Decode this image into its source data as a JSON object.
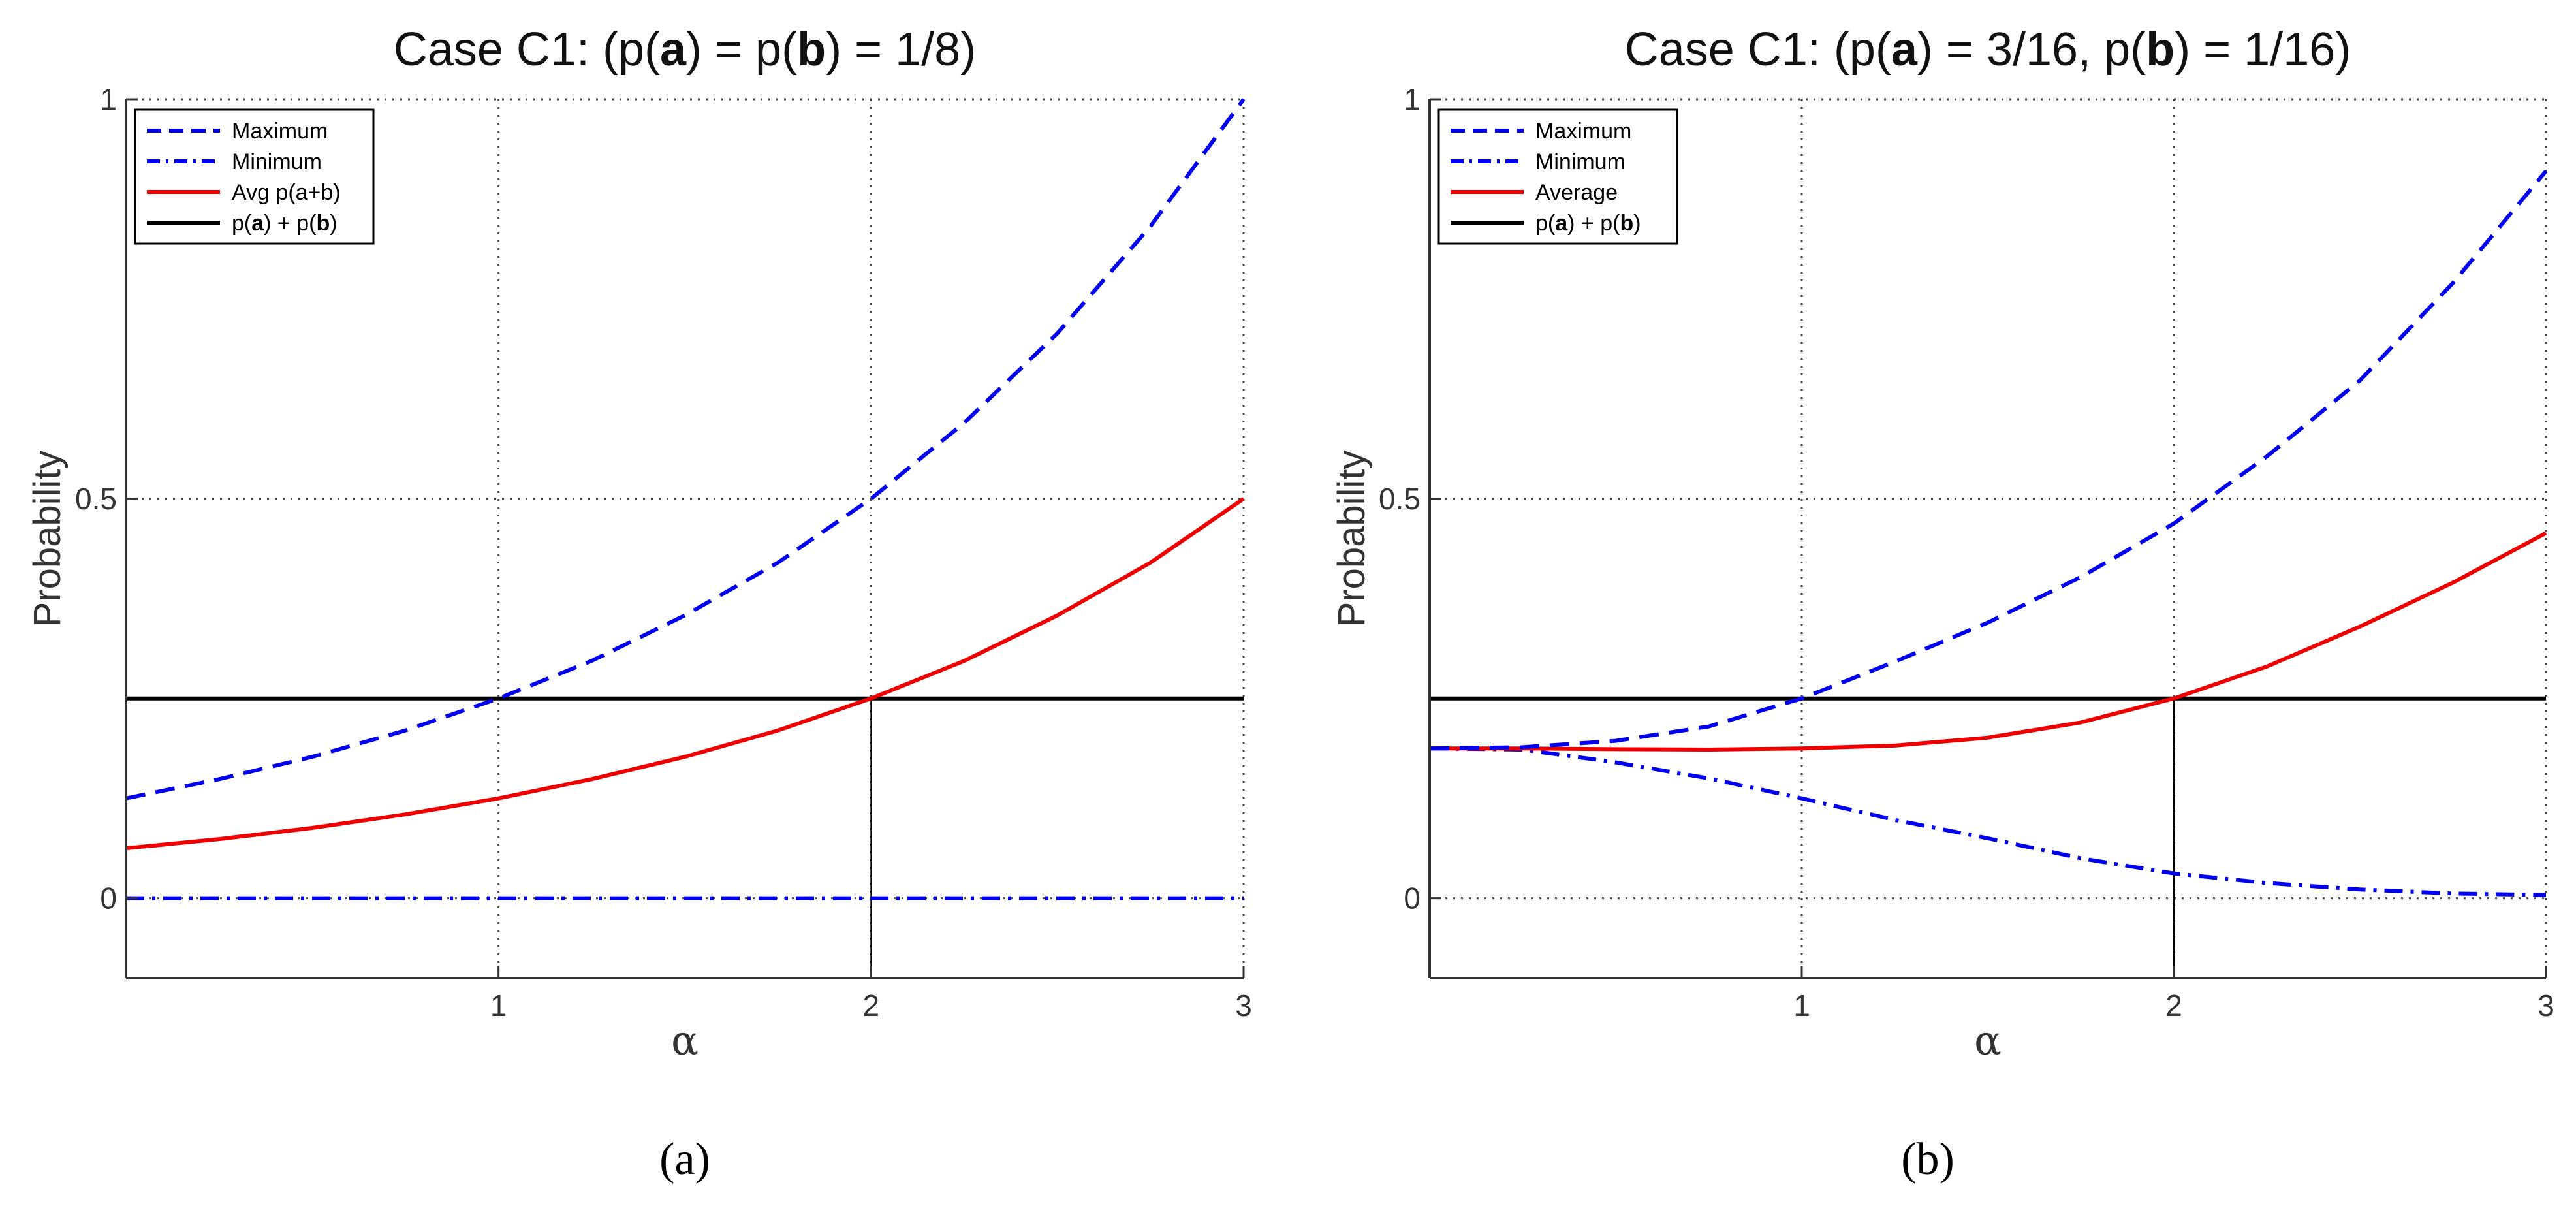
{
  "chart_data": [
    {
      "type": "line",
      "title": {
        "prefix": "Case C1: (p(",
        "a": "a",
        "mid": ") = p(",
        "b": "b",
        "suffix": ") = 1/8)"
      },
      "xlabel": "α",
      "ylabel": "Probability",
      "caption": "(a)",
      "xlim": [
        0,
        3
      ],
      "ylim": [
        -0.1,
        1
      ],
      "xticks": [
        1,
        2,
        3
      ],
      "yticks": [
        0,
        0.5,
        1
      ],
      "ytick_labels": [
        "0",
        "0.5",
        "1"
      ],
      "grid": true,
      "legend_position": "top-left",
      "x": [
        0,
        0.25,
        0.5,
        0.75,
        1,
        1.25,
        1.5,
        1.75,
        2,
        2.25,
        2.5,
        2.75,
        3
      ],
      "series": [
        {
          "name": "Maximum",
          "key": "max",
          "color": "#0000ee",
          "dash": "dashed",
          "values": [
            0.125,
            0.149,
            0.177,
            0.21,
            0.25,
            0.297,
            0.354,
            0.42,
            0.5,
            0.595,
            0.707,
            0.841,
            1.0
          ]
        },
        {
          "name": "Minimum",
          "key": "min",
          "color": "#0000ee",
          "dash": "dashdot",
          "values": [
            0,
            0,
            0,
            0,
            0,
            0,
            0,
            0,
            0,
            0,
            0,
            0,
            0
          ]
        },
        {
          "name": "Avg p(a+b)",
          "key": "avg",
          "color": "#ee0000",
          "dash": "solid",
          "values": [
            0.0625,
            0.074,
            0.088,
            0.105,
            0.125,
            0.149,
            0.177,
            0.21,
            0.25,
            0.297,
            0.354,
            0.42,
            0.5
          ]
        },
        {
          "name": "p(a) + p(b)",
          "key": "sum",
          "color": "#000000",
          "dash": "solid",
          "legend_parts": [
            "p(",
            "a",
            ") + p(",
            "b",
            ")"
          ],
          "values": [
            0.25,
            0.25,
            0.25,
            0.25,
            0.25,
            0.25,
            0.25,
            0.25,
            0.25,
            0.25,
            0.25,
            0.25,
            0.25
          ]
        }
      ],
      "drop_line": {
        "x": 2,
        "y": 0.25
      }
    },
    {
      "type": "line",
      "title": {
        "prefix": "Case C1: (p(",
        "a": "a",
        "mid": ") = 3/16, p(",
        "b": "b",
        "suffix": ") = 1/16)"
      },
      "xlabel": "α",
      "ylabel": "Probability",
      "caption": "(b)",
      "xlim": [
        0,
        3
      ],
      "ylim": [
        -0.1,
        1
      ],
      "xticks": [
        1,
        2,
        3
      ],
      "yticks": [
        0,
        0.5,
        1
      ],
      "ytick_labels": [
        "0",
        "0.5",
        "1"
      ],
      "grid": true,
      "legend_position": "top-left",
      "x": [
        0,
        0.25,
        0.5,
        0.75,
        1,
        1.25,
        1.5,
        1.75,
        2,
        2.25,
        2.5,
        2.75,
        3
      ],
      "series": [
        {
          "name": "Maximum",
          "key": "max",
          "color": "#0000ee",
          "dash": "dashed",
          "values": [
            0.1875,
            0.189,
            0.197,
            0.215,
            0.25,
            0.296,
            0.345,
            0.402,
            0.469,
            0.553,
            0.648,
            0.77,
            0.91
          ]
        },
        {
          "name": "Minimum",
          "key": "min",
          "color": "#0000ee",
          "dash": "dashdot",
          "values": [
            0.1875,
            0.186,
            0.17,
            0.15,
            0.125,
            0.098,
            0.075,
            0.05,
            0.031,
            0.019,
            0.011,
            0.006,
            0.004
          ]
        },
        {
          "name": "Average",
          "key": "avg",
          "color": "#ee0000",
          "dash": "solid",
          "values": [
            0.1875,
            0.1875,
            0.1865,
            0.186,
            0.1875,
            0.191,
            0.201,
            0.22,
            0.25,
            0.29,
            0.34,
            0.395,
            0.457
          ]
        },
        {
          "name": "p(a) + p(b)",
          "key": "sum",
          "color": "#000000",
          "dash": "solid",
          "legend_parts": [
            "p(",
            "a",
            ") + p(",
            "b",
            ")"
          ],
          "values": [
            0.25,
            0.25,
            0.25,
            0.25,
            0.25,
            0.25,
            0.25,
            0.25,
            0.25,
            0.25,
            0.25,
            0.25,
            0.25
          ]
        }
      ],
      "drop_line": {
        "x": 2,
        "y": 0.25
      }
    }
  ]
}
